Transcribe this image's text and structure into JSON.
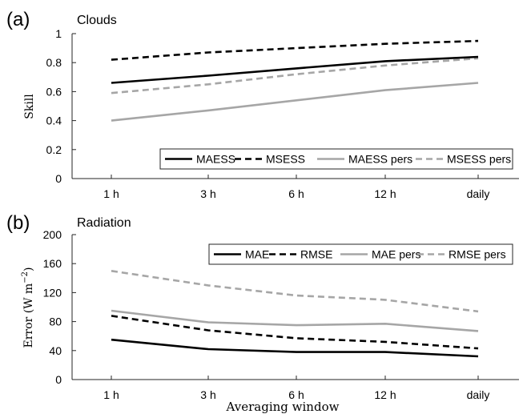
{
  "chart_data": [
    {
      "type": "line",
      "panel_label": "(a)",
      "title": "Clouds",
      "xlabel": "",
      "ylabel": "Skill",
      "categories": [
        "1 h",
        "3 h",
        "6 h",
        "12 h",
        "daily"
      ],
      "ylim": [
        0,
        1
      ],
      "yticks": [
        "0",
        "0.2",
        "0.4",
        "0.6",
        "0.8",
        "1"
      ],
      "grid": false,
      "legend_position": "bottom-right",
      "series": [
        {
          "name": "MAESS",
          "values": [
            0.66,
            0.71,
            0.76,
            0.81,
            0.84
          ],
          "color": "#000000",
          "dash": "solid"
        },
        {
          "name": "MSESS",
          "values": [
            0.82,
            0.87,
            0.9,
            0.93,
            0.95
          ],
          "color": "#000000",
          "dash": "dashed"
        },
        {
          "name": "MAESS pers",
          "values": [
            0.4,
            0.47,
            0.54,
            0.61,
            0.66
          ],
          "color": "#a6a6a6",
          "dash": "solid"
        },
        {
          "name": "MSESS pers",
          "values": [
            0.59,
            0.65,
            0.72,
            0.78,
            0.83
          ],
          "color": "#a6a6a6",
          "dash": "dashed"
        }
      ]
    },
    {
      "type": "line",
      "panel_label": "(b)",
      "title": "Radiation",
      "xlabel": "Averaging window",
      "ylabel": "Error (W m",
      "ylabel_sup": "−2",
      "ylabel_close": ")",
      "categories": [
        "1 h",
        "3 h",
        "6 h",
        "12 h",
        "daily"
      ],
      "ylim": [
        0,
        200
      ],
      "yticks": [
        "0",
        "40",
        "80",
        "120",
        "160",
        "200"
      ],
      "grid": false,
      "legend_position": "top-right",
      "series": [
        {
          "name": "MAE",
          "values": [
            55,
            42,
            38,
            38,
            32
          ],
          "color": "#000000",
          "dash": "solid"
        },
        {
          "name": "RMSE",
          "values": [
            88,
            68,
            57,
            52,
            43
          ],
          "color": "#000000",
          "dash": "dashed"
        },
        {
          "name": "MAE pers",
          "values": [
            95,
            79,
            75,
            77,
            67
          ],
          "color": "#a6a6a6",
          "dash": "solid"
        },
        {
          "name": "RMSE pers",
          "values": [
            150,
            130,
            116,
            110,
            94
          ],
          "color": "#a6a6a6",
          "dash": "dashed"
        }
      ]
    }
  ]
}
